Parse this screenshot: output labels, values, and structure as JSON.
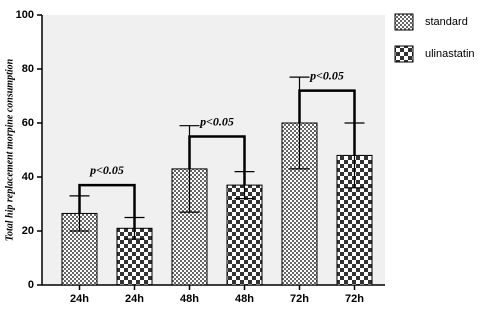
{
  "chart_data": {
    "type": "bar",
    "y_label": "Total hip replacement morpine consumption",
    "categories": [
      "24h",
      "24h",
      "48h",
      "48h",
      "72h",
      "72h"
    ],
    "series": [
      {
        "name": "standard",
        "color": "#666666",
        "values": [
          26.5,
          null,
          43,
          null,
          60,
          null
        ],
        "errors": [
          6.5,
          null,
          16,
          null,
          17,
          null
        ]
      },
      {
        "name": "ulinastatin",
        "color": "#333333",
        "values": [
          null,
          21,
          null,
          37,
          null,
          48
        ],
        "errors": [
          null,
          4,
          null,
          5,
          null,
          12
        ]
      }
    ],
    "annotations": [
      {
        "text": "p<0.05",
        "y": 37
      },
      {
        "text": "p<0.05",
        "y": 55
      },
      {
        "text": "p<0.05",
        "y": 72
      }
    ],
    "ylim": [
      0,
      100
    ],
    "yticks": [
      0,
      20,
      40,
      60,
      80,
      100
    ],
    "grid": false,
    "legend": "right"
  }
}
